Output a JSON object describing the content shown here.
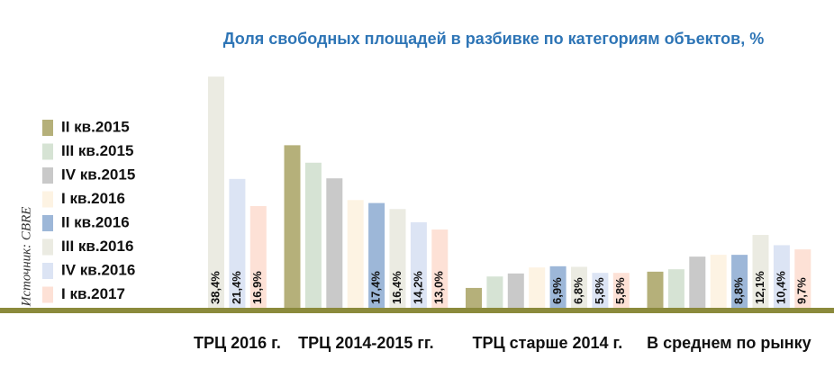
{
  "chart_data": {
    "type": "bar",
    "title": "Доля свободных площадей в разбивке по категориям объектов, %",
    "source": "Источник: CBRE",
    "categories": [
      "ТРЦ 2016 г.",
      "ТРЦ 2014-2015 гг.",
      "ТРЦ старше 2014 г.",
      "В среднем по рынку"
    ],
    "ylim": [
      0,
      40
    ],
    "series": [
      {
        "name": "II кв.2015",
        "color": "#b5b07a",
        "values": [
          null,
          27.0,
          3.3,
          6.0
        ]
      },
      {
        "name": "III кв.2015",
        "color": "#d6e3d4",
        "values": [
          null,
          24.1,
          5.2,
          6.4
        ]
      },
      {
        "name": "IV кв.2015",
        "color": "#c9c9c9",
        "values": [
          null,
          21.5,
          5.7,
          8.5
        ]
      },
      {
        "name": "I кв.2016",
        "color": "#fdf3e3",
        "values": [
          null,
          17.9,
          6.7,
          8.8
        ]
      },
      {
        "name": "II кв.2016",
        "color": "#9db7d8",
        "values": [
          null,
          17.4,
          6.9,
          8.8
        ],
        "value_labels": [
          null,
          "17,4%",
          "6,9%",
          "8,8%"
        ]
      },
      {
        "name": "III кв.2016",
        "color": "#ebebe2",
        "values": [
          38.4,
          16.4,
          6.8,
          12.1
        ],
        "value_labels": [
          "38,4%",
          "16,4%",
          "6,8%",
          "12,1%"
        ]
      },
      {
        "name": "IV кв.2016",
        "color": "#dce4f4",
        "values": [
          21.4,
          14.2,
          5.8,
          10.4
        ],
        "value_labels": [
          "21,4%",
          "14,2%",
          "5,8%",
          "10,4%"
        ]
      },
      {
        "name": "I кв.2017",
        "color": "#fde1d6",
        "values": [
          16.9,
          13.0,
          5.8,
          9.7
        ],
        "value_labels": [
          "16,9%",
          "13,0%",
          "5,8%",
          "9,7%"
        ]
      }
    ]
  }
}
